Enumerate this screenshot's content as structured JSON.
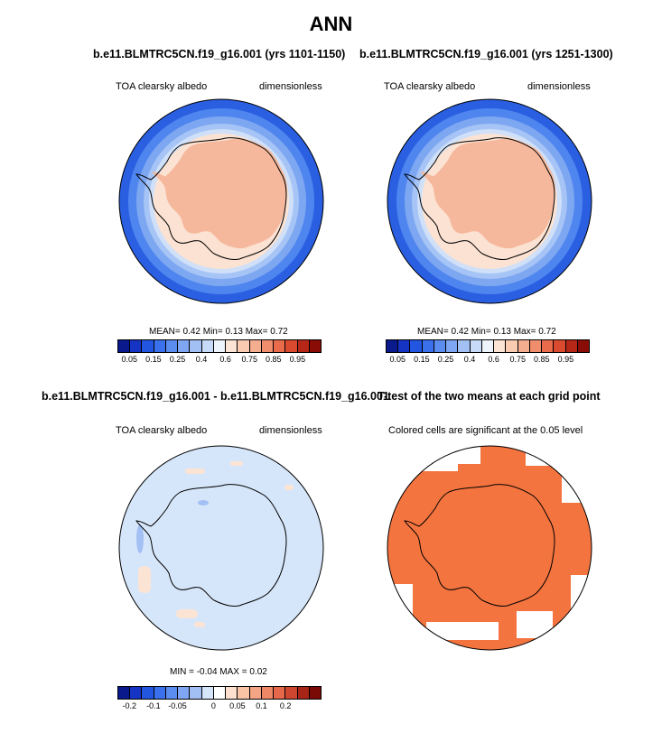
{
  "main_title": "ANN",
  "panel1": {
    "title": "b.e11.BLMTRC5CN.f19_g16.001 (yrs 1101-1150)",
    "left_label": "TOA clearsky albedo",
    "right_label": "dimensionless",
    "stats": "MEAN=  0.42  Min=   0.13  Max=   0.72"
  },
  "panel2": {
    "title": "b.e11.BLMTRC5CN.f19_g16.001 (yrs 1251-1300)",
    "left_label": "TOA clearsky albedo",
    "right_label": "dimensionless",
    "stats": "MEAN=  0.42  Min=   0.13  Max=   0.72"
  },
  "panel3": {
    "title": "b.e11.BLMTRC5CN.f19_g16.001 - b.e11.BLMTRC5CN.f19_g16.001",
    "left_label": "TOA clearsky albedo",
    "right_label": "dimensionless",
    "stats": "MIN =  -0.04  MAX =   0.02"
  },
  "panel4": {
    "title": "T-test of the two means at each grid point",
    "subtitle": "Colored cells are significant at the 0.05 level",
    "fill_color": "#f4743f"
  },
  "colorbar_abs": {
    "colors": [
      "#0a1a8c",
      "#1634c4",
      "#2255e0",
      "#3a70ec",
      "#5b8cf0",
      "#7fa6f2",
      "#a3c0f4",
      "#c7dbf8",
      "#eef4fb",
      "#fce4d5",
      "#f9cbb0",
      "#f4ad8f",
      "#f08d6c",
      "#e96b4c",
      "#d94a2e",
      "#b62718",
      "#8a0c06"
    ],
    "tick_labels": [
      "0.05",
      "0.15",
      "0.25",
      "0.4",
      "0.6",
      "0.75",
      "0.85",
      "0.95"
    ],
    "tick_slots": [
      1,
      3,
      5,
      7,
      9,
      11,
      13,
      15
    ]
  },
  "colorbar_diff": {
    "colors": [
      "#0a1a8c",
      "#1634c4",
      "#2255e0",
      "#3a70ec",
      "#5b8cf0",
      "#7fa6f2",
      "#a3c0f4",
      "#d6e6fa",
      "#ffffff",
      "#fde0cf",
      "#f9c3a6",
      "#f4a585",
      "#ee8766",
      "#e5684a",
      "#cf4630",
      "#a82417",
      "#7a0a05"
    ],
    "tick_labels": [
      "-0.2",
      "-0.1",
      "-0.05",
      "0",
      "0.05",
      "0.1",
      "0.2"
    ],
    "tick_slots": [
      1,
      3,
      5,
      8,
      10,
      12,
      14
    ]
  }
}
